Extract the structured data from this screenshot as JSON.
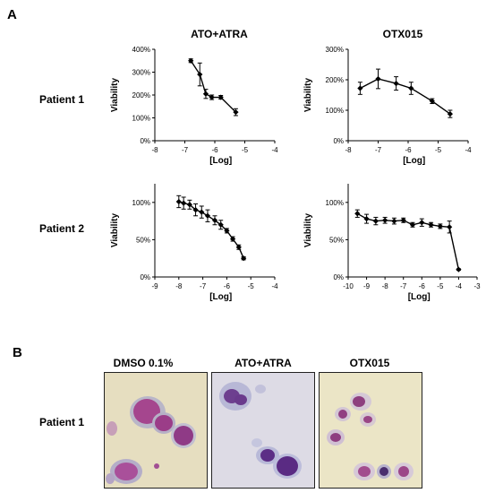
{
  "panel_a_label": "A",
  "panel_b_label": "B",
  "columns": [
    "ATO+ATRA",
    "OTX015"
  ],
  "rows": [
    "Patient 1",
    "Patient 2"
  ],
  "micro_titles": [
    "DMSO 0.1%",
    "ATO+ATRA",
    "OTX015"
  ],
  "micro_row_label": "Patient 1",
  "chart_data": [
    {
      "type": "line",
      "title": "ATO+ATRA",
      "xlabel": "[Log]",
      "ylabel": "Viability",
      "xlim": [
        -8,
        -4
      ],
      "ylim": [
        0,
        400
      ],
      "xticks": [
        -8,
        -7,
        -6,
        -5,
        -4
      ],
      "yticks": [
        0,
        100,
        200,
        300,
        400
      ],
      "ytick_labels": [
        "0%",
        "100%",
        "200%",
        "300%",
        "400%"
      ],
      "x": [
        -6.8,
        -6.5,
        -6.3,
        -6.1,
        -5.8,
        -5.3
      ],
      "y": [
        350,
        290,
        205,
        190,
        190,
        125
      ],
      "err": [
        8,
        50,
        20,
        10,
        8,
        15
      ]
    },
    {
      "type": "line",
      "title": "OTX015",
      "xlabel": "[Log]",
      "ylabel": "Viability",
      "xlim": [
        -8,
        -4
      ],
      "ylim": [
        0,
        300
      ],
      "xticks": [
        -8,
        -7,
        -6,
        -5,
        -4
      ],
      "yticks": [
        0,
        100,
        200,
        300
      ],
      "ytick_labels": [
        "0%",
        "100%",
        "200%",
        "300%"
      ],
      "x": [
        -7.6,
        -7.0,
        -6.4,
        -5.9,
        -5.2,
        -4.6
      ],
      "y": [
        172,
        203,
        188,
        172,
        130,
        88
      ],
      "err": [
        20,
        32,
        22,
        20,
        8,
        12
      ]
    },
    {
      "type": "line",
      "title": "",
      "xlabel": "[Log]",
      "ylabel": "Viability",
      "xlim": [
        -9,
        -4
      ],
      "ylim": [
        0,
        125
      ],
      "xticks": [
        -9,
        -8,
        -7,
        -6,
        -5,
        -4
      ],
      "yticks": [
        0,
        50,
        100
      ],
      "ytick_labels": [
        "0%",
        "50%",
        "100%"
      ],
      "x": [
        -8.0,
        -7.8,
        -7.55,
        -7.3,
        -7.05,
        -6.8,
        -6.5,
        -6.25,
        -6.0,
        -5.75,
        -5.5,
        -5.3
      ],
      "y": [
        101,
        99,
        97,
        90,
        87,
        82,
        76,
        70,
        62,
        51,
        40,
        25
      ],
      "err": [
        8,
        8,
        6,
        8,
        8,
        8,
        6,
        6,
        3,
        3,
        3,
        2
      ]
    },
    {
      "type": "line",
      "title": "",
      "xlabel": "[Log]",
      "ylabel": "Viability",
      "xlim": [
        -10,
        -3
      ],
      "ylim": [
        0,
        125
      ],
      "xticks": [
        -10,
        -9,
        -8,
        -7,
        -6,
        -5,
        -4,
        -3
      ],
      "yticks": [
        0,
        50,
        100
      ],
      "ytick_labels": [
        "0%",
        "50%",
        "100%"
      ],
      "x": [
        -9.5,
        -9.0,
        -8.5,
        -8.0,
        -7.5,
        -7.0,
        -6.5,
        -6.0,
        -5.5,
        -5.0,
        -4.5,
        -4.0
      ],
      "y": [
        85,
        78,
        75,
        76,
        75,
        76,
        70,
        73,
        70,
        68,
        67,
        10
      ],
      "err": [
        5,
        6,
        5,
        4,
        4,
        3,
        3,
        5,
        3,
        3,
        8,
        1
      ]
    }
  ]
}
